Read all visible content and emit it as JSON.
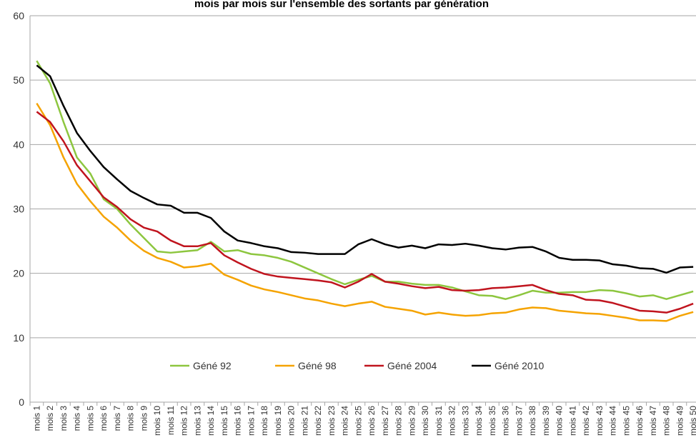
{
  "chart_data": {
    "type": "line",
    "title": "mois par mois sur l'ensemble des sortants par génération",
    "categories": [
      "mois 1",
      "mois 2",
      "mois 3",
      "mois 4",
      "mois 5",
      "mois 6",
      "mois 7",
      "mois 8",
      "mois 9",
      "mois 10",
      "mois 11",
      "mois 12",
      "mois 13",
      "mois 14",
      "mois 15",
      "mois 16",
      "mois 17",
      "mois 18",
      "mois 19",
      "mois 20",
      "mois 21",
      "mois 22",
      "mois 23",
      "mois 24",
      "mois 25",
      "mois 26",
      "mois 27",
      "mois 28",
      "mois 29",
      "mois 30",
      "mois 31",
      "mois 32",
      "mois 33",
      "mois 34",
      "mois 35",
      "mois 36",
      "mois 37",
      "mois 38",
      "mois 39",
      "mois 40",
      "mois 41",
      "mois 42",
      "mois 43",
      "mois 44",
      "mois 45",
      "mois 46",
      "mois 47",
      "mois 48",
      "mois 49",
      "mois 50"
    ],
    "series": [
      {
        "name": "Géné 92",
        "color": "#8dc63f",
        "values": [
          53,
          49.5,
          43.5,
          38,
          35.5,
          31.5,
          30,
          27.6,
          25.5,
          23.4,
          23.2,
          23.4,
          23.6,
          24.9,
          23.4,
          23.6,
          23.0,
          22.8,
          22.4,
          21.8,
          20.9,
          20.0,
          19.1,
          18.3,
          19.0,
          19.6,
          18.7,
          18.7,
          18.4,
          18.2,
          18.2,
          17.8,
          17.2,
          16.6,
          16.5,
          16.0,
          16.6,
          17.3,
          17.0,
          17.0,
          17.1,
          17.1,
          17.4,
          17.3,
          16.9,
          16.4,
          16.6,
          16.0,
          16.6,
          17.2
        ]
      },
      {
        "name": "Géné 98",
        "color": "#f5a300",
        "values": [
          46.4,
          43,
          38,
          33.9,
          31.2,
          28.8,
          27.1,
          25.1,
          23.5,
          22.4,
          21.8,
          20.9,
          21.1,
          21.5,
          19.8,
          19.0,
          18.1,
          17.5,
          17.1,
          16.6,
          16.1,
          15.8,
          15.3,
          14.9,
          15.3,
          15.6,
          14.8,
          14.5,
          14.2,
          13.6,
          13.9,
          13.6,
          13.4,
          13.5,
          13.8,
          13.9,
          14.4,
          14.7,
          14.6,
          14.2,
          14.0,
          13.8,
          13.7,
          13.4,
          13.1,
          12.7,
          12.7,
          12.6,
          13.4,
          14.0
        ]
      },
      {
        "name": "Géné 2004",
        "color": "#c0141e",
        "values": [
          45.1,
          43.5,
          40.5,
          36.8,
          34.3,
          31.8,
          30.3,
          28.4,
          27.1,
          26.5,
          25.1,
          24.2,
          24.2,
          24.7,
          22.8,
          21.7,
          20.7,
          19.9,
          19.5,
          19.3,
          19.1,
          18.9,
          18.6,
          17.8,
          18.7,
          19.9,
          18.7,
          18.4,
          18.0,
          17.7,
          17.9,
          17.4,
          17.3,
          17.4,
          17.7,
          17.8,
          18.0,
          18.2,
          17.4,
          16.8,
          16.6,
          15.9,
          15.8,
          15.4,
          14.8,
          14.2,
          14.1,
          13.9,
          14.5,
          15.3
        ]
      },
      {
        "name": "Géné 2010",
        "color": "#000000",
        "values": [
          52.3,
          50.6,
          46,
          41.8,
          39,
          36.5,
          34.6,
          32.8,
          31.7,
          30.7,
          30.5,
          29.4,
          29.4,
          28.6,
          26.5,
          25.1,
          24.7,
          24.2,
          23.9,
          23.3,
          23.2,
          23.0,
          23.0,
          23.0,
          24.5,
          25.3,
          24.5,
          24.0,
          24.3,
          23.9,
          24.5,
          24.4,
          24.6,
          24.3,
          23.9,
          23.7,
          24.0,
          24.1,
          23.4,
          22.4,
          22.1,
          22.1,
          22.0,
          21.4,
          21.2,
          20.8,
          20.7,
          20.1,
          20.9,
          21.0
        ]
      }
    ],
    "ylim": [
      0,
      60
    ],
    "yticks": [
      0,
      10,
      20,
      30,
      40,
      50,
      60
    ],
    "grid": true,
    "legend": "bottom"
  }
}
